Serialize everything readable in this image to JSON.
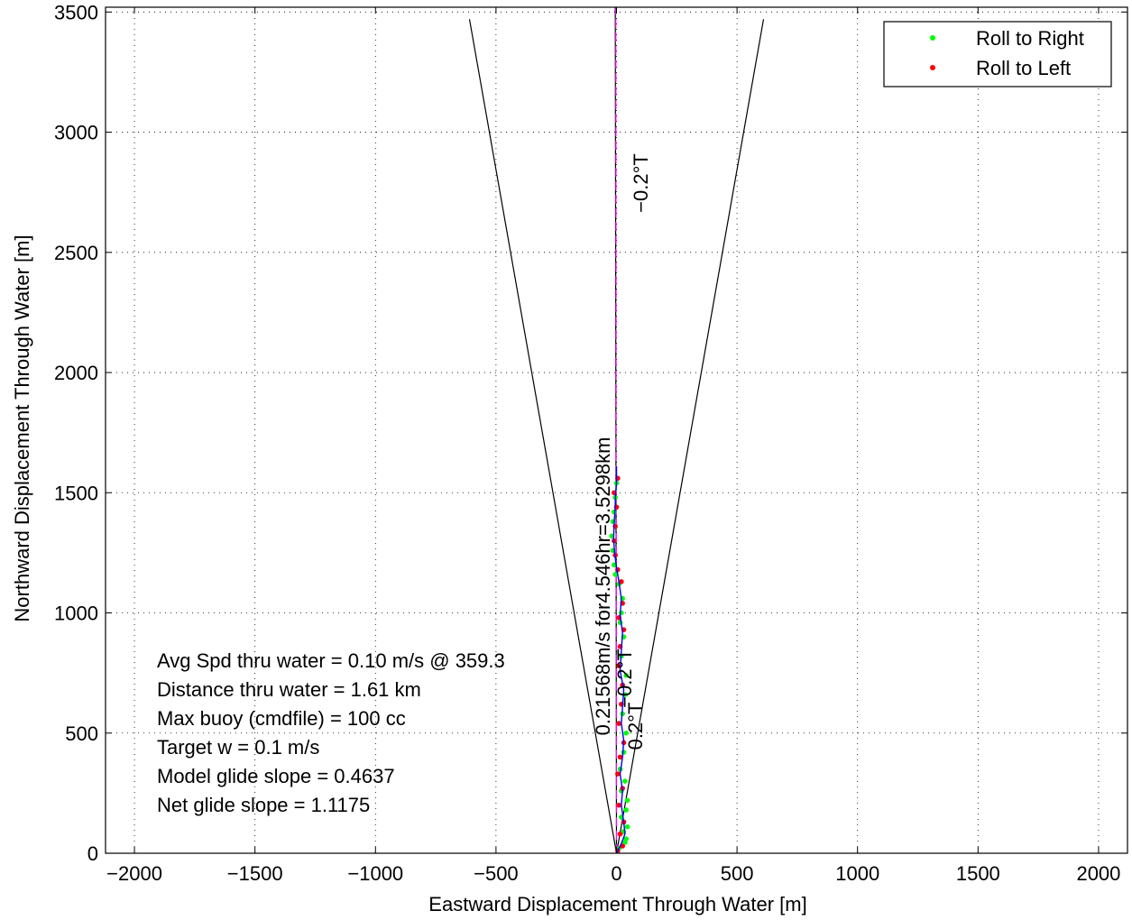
{
  "chart_data": {
    "type": "scatter",
    "xlabel": "Eastward Displacement Through Water [m]",
    "ylabel": "Northward Displacement Through Water [m]",
    "xlim": [
      -2120,
      2120
    ],
    "ylim": [
      0,
      3520
    ],
    "xticks": [
      -2000,
      -1500,
      -1000,
      -500,
      0,
      500,
      1000,
      1500,
      2000
    ],
    "yticks": [
      0,
      500,
      1000,
      1500,
      2000,
      2500,
      3000,
      3500
    ],
    "grid": true,
    "legend_position": "top-right",
    "legend": [
      {
        "label": "Roll to Right",
        "color": "#00ff00"
      },
      {
        "label": "Roll to Left",
        "color": "#ff0000"
      }
    ],
    "annotations": [
      "Avg Spd thru water =  0.10 m/s @ 359.3",
      "Distance thru water =  1.61 km",
      "Max buoy (cmdfile) = 100 cc",
      "Target w = 0.1 m/s",
      "Model glide slope = 0.4637",
      "Net glide slope = 1.1175"
    ],
    "heading_label_top": "−0.2°T",
    "heading_label_mid": "−0.2°T",
    "heading_label_small": "0.2°T",
    "track_label": "0.21568m/s for4.546hr=3.5298km",
    "series": [
      {
        "name": "Roll to Right",
        "color": "#00ff00",
        "points": [
          [
            10,
            20
          ],
          [
            35,
            45
          ],
          [
            40,
            60
          ],
          [
            30,
            90
          ],
          [
            45,
            110
          ],
          [
            20,
            150
          ],
          [
            40,
            180
          ],
          [
            45,
            220
          ],
          [
            20,
            260
          ],
          [
            35,
            300
          ],
          [
            15,
            350
          ],
          [
            30,
            420
          ],
          [
            40,
            500
          ],
          [
            25,
            580
          ],
          [
            35,
            660
          ],
          [
            40,
            740
          ],
          [
            20,
            820
          ],
          [
            30,
            900
          ],
          [
            15,
            960
          ],
          [
            20,
            1000
          ],
          [
            25,
            1060
          ],
          [
            10,
            1120
          ],
          [
            -5,
            1160
          ],
          [
            -10,
            1200
          ],
          [
            -15,
            1260
          ],
          [
            -20,
            1320
          ],
          [
            -15,
            1380
          ],
          [
            -10,
            1420
          ],
          [
            -5,
            1480
          ],
          [
            0,
            1540
          ]
        ]
      },
      {
        "name": "Roll to Left",
        "color": "#ff0000",
        "points": [
          [
            5,
            10
          ],
          [
            25,
            30
          ],
          [
            15,
            80
          ],
          [
            30,
            130
          ],
          [
            10,
            200
          ],
          [
            25,
            270
          ],
          [
            5,
            330
          ],
          [
            15,
            400
          ],
          [
            30,
            460
          ],
          [
            10,
            540
          ],
          [
            20,
            620
          ],
          [
            25,
            700
          ],
          [
            10,
            780
          ],
          [
            15,
            860
          ],
          [
            30,
            930
          ],
          [
            10,
            980
          ],
          [
            25,
            1040
          ],
          [
            20,
            1130
          ],
          [
            5,
            1180
          ],
          [
            -5,
            1240
          ],
          [
            -10,
            1300
          ],
          [
            -5,
            1360
          ],
          [
            0,
            1440
          ],
          [
            -10,
            1500
          ],
          [
            5,
            1560
          ]
        ]
      },
      {
        "name": "",
        "color": "#0000ff",
        "points": [
          [
            0,
            0
          ],
          [
            20,
            40
          ],
          [
            35,
            80
          ],
          [
            30,
            130
          ],
          [
            20,
            200
          ],
          [
            25,
            260
          ],
          [
            15,
            330
          ],
          [
            25,
            400
          ],
          [
            30,
            470
          ],
          [
            20,
            540
          ],
          [
            25,
            610
          ],
          [
            30,
            680
          ],
          [
            15,
            760
          ],
          [
            20,
            840
          ],
          [
            25,
            920
          ],
          [
            15,
            990
          ],
          [
            20,
            1060
          ],
          [
            10,
            1130
          ],
          [
            0,
            1190
          ],
          [
            -8,
            1250
          ],
          [
            -12,
            1310
          ],
          [
            -10,
            1370
          ],
          [
            -6,
            1430
          ],
          [
            -4,
            1490
          ],
          [
            0,
            1540
          ],
          [
            0,
            1610
          ]
        ]
      }
    ],
    "reference_lines": [
      {
        "color": "#000000",
        "points": [
          [
            0,
            0
          ],
          [
            -610,
            3470
          ]
        ]
      },
      {
        "color": "#000000",
        "points": [
          [
            0,
            0
          ],
          [
            610,
            3470
          ]
        ]
      },
      {
        "color": "#000000",
        "points": [
          [
            0,
            0
          ],
          [
            -5,
            3520
          ]
        ]
      },
      {
        "color": "#ff00ff",
        "points": [
          [
            0,
            0
          ],
          [
            -3,
            3520
          ]
        ]
      }
    ]
  }
}
